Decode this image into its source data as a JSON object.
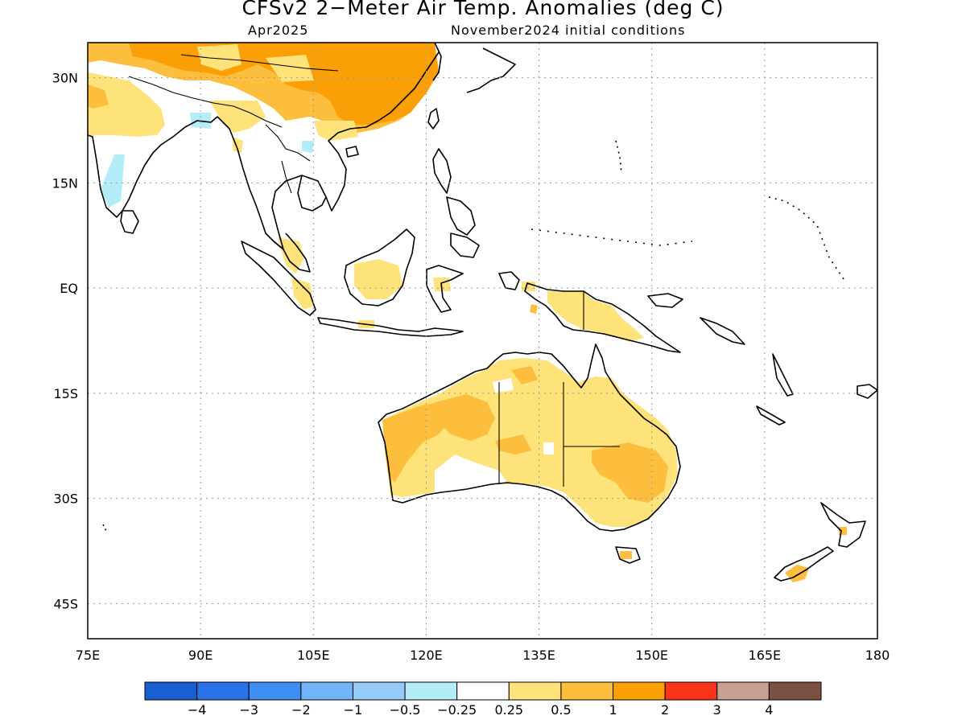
{
  "title": "CFSv2 2−Meter Air Temp. Anomalies (deg C)",
  "subtitle_left": "Apr2025",
  "subtitle_right": "November2024 initial conditions",
  "map": {
    "lon_range": [
      75,
      180
    ],
    "lat_range": [
      -50,
      35
    ],
    "lon_ticks": [
      {
        "value": 75,
        "label": "75E"
      },
      {
        "value": 90,
        "label": "90E"
      },
      {
        "value": 105,
        "label": "105E"
      },
      {
        "value": 120,
        "label": "120E"
      },
      {
        "value": 135,
        "label": "135E"
      },
      {
        "value": 150,
        "label": "150E"
      },
      {
        "value": 165,
        "label": "165E"
      },
      {
        "value": 180,
        "label": "180"
      }
    ],
    "lat_ticks": [
      {
        "value": 30,
        "label": "30N"
      },
      {
        "value": 15,
        "label": "15N"
      },
      {
        "value": 0,
        "label": "EQ"
      },
      {
        "value": -15,
        "label": "15S"
      },
      {
        "value": -30,
        "label": "30S"
      },
      {
        "value": -45,
        "label": "45S"
      }
    ],
    "grid": true,
    "grid_style": "dotted"
  },
  "colorbar": {
    "colors": [
      "#1a5fd0",
      "#2a72e8",
      "#3e8ef4",
      "#73b3f8",
      "#96cbf9",
      "#b3eef8",
      "#ffffff",
      "#fde37a",
      "#fcbe3c",
      "#fb9f07",
      "#f9341a",
      "#c9a092",
      "#7c5142"
    ],
    "labels": [
      "−4",
      "−3",
      "−2",
      "−1",
      "−0.5",
      "−0.25",
      "0.25",
      "0.5",
      "1",
      "2",
      "3",
      "4"
    ]
  }
}
